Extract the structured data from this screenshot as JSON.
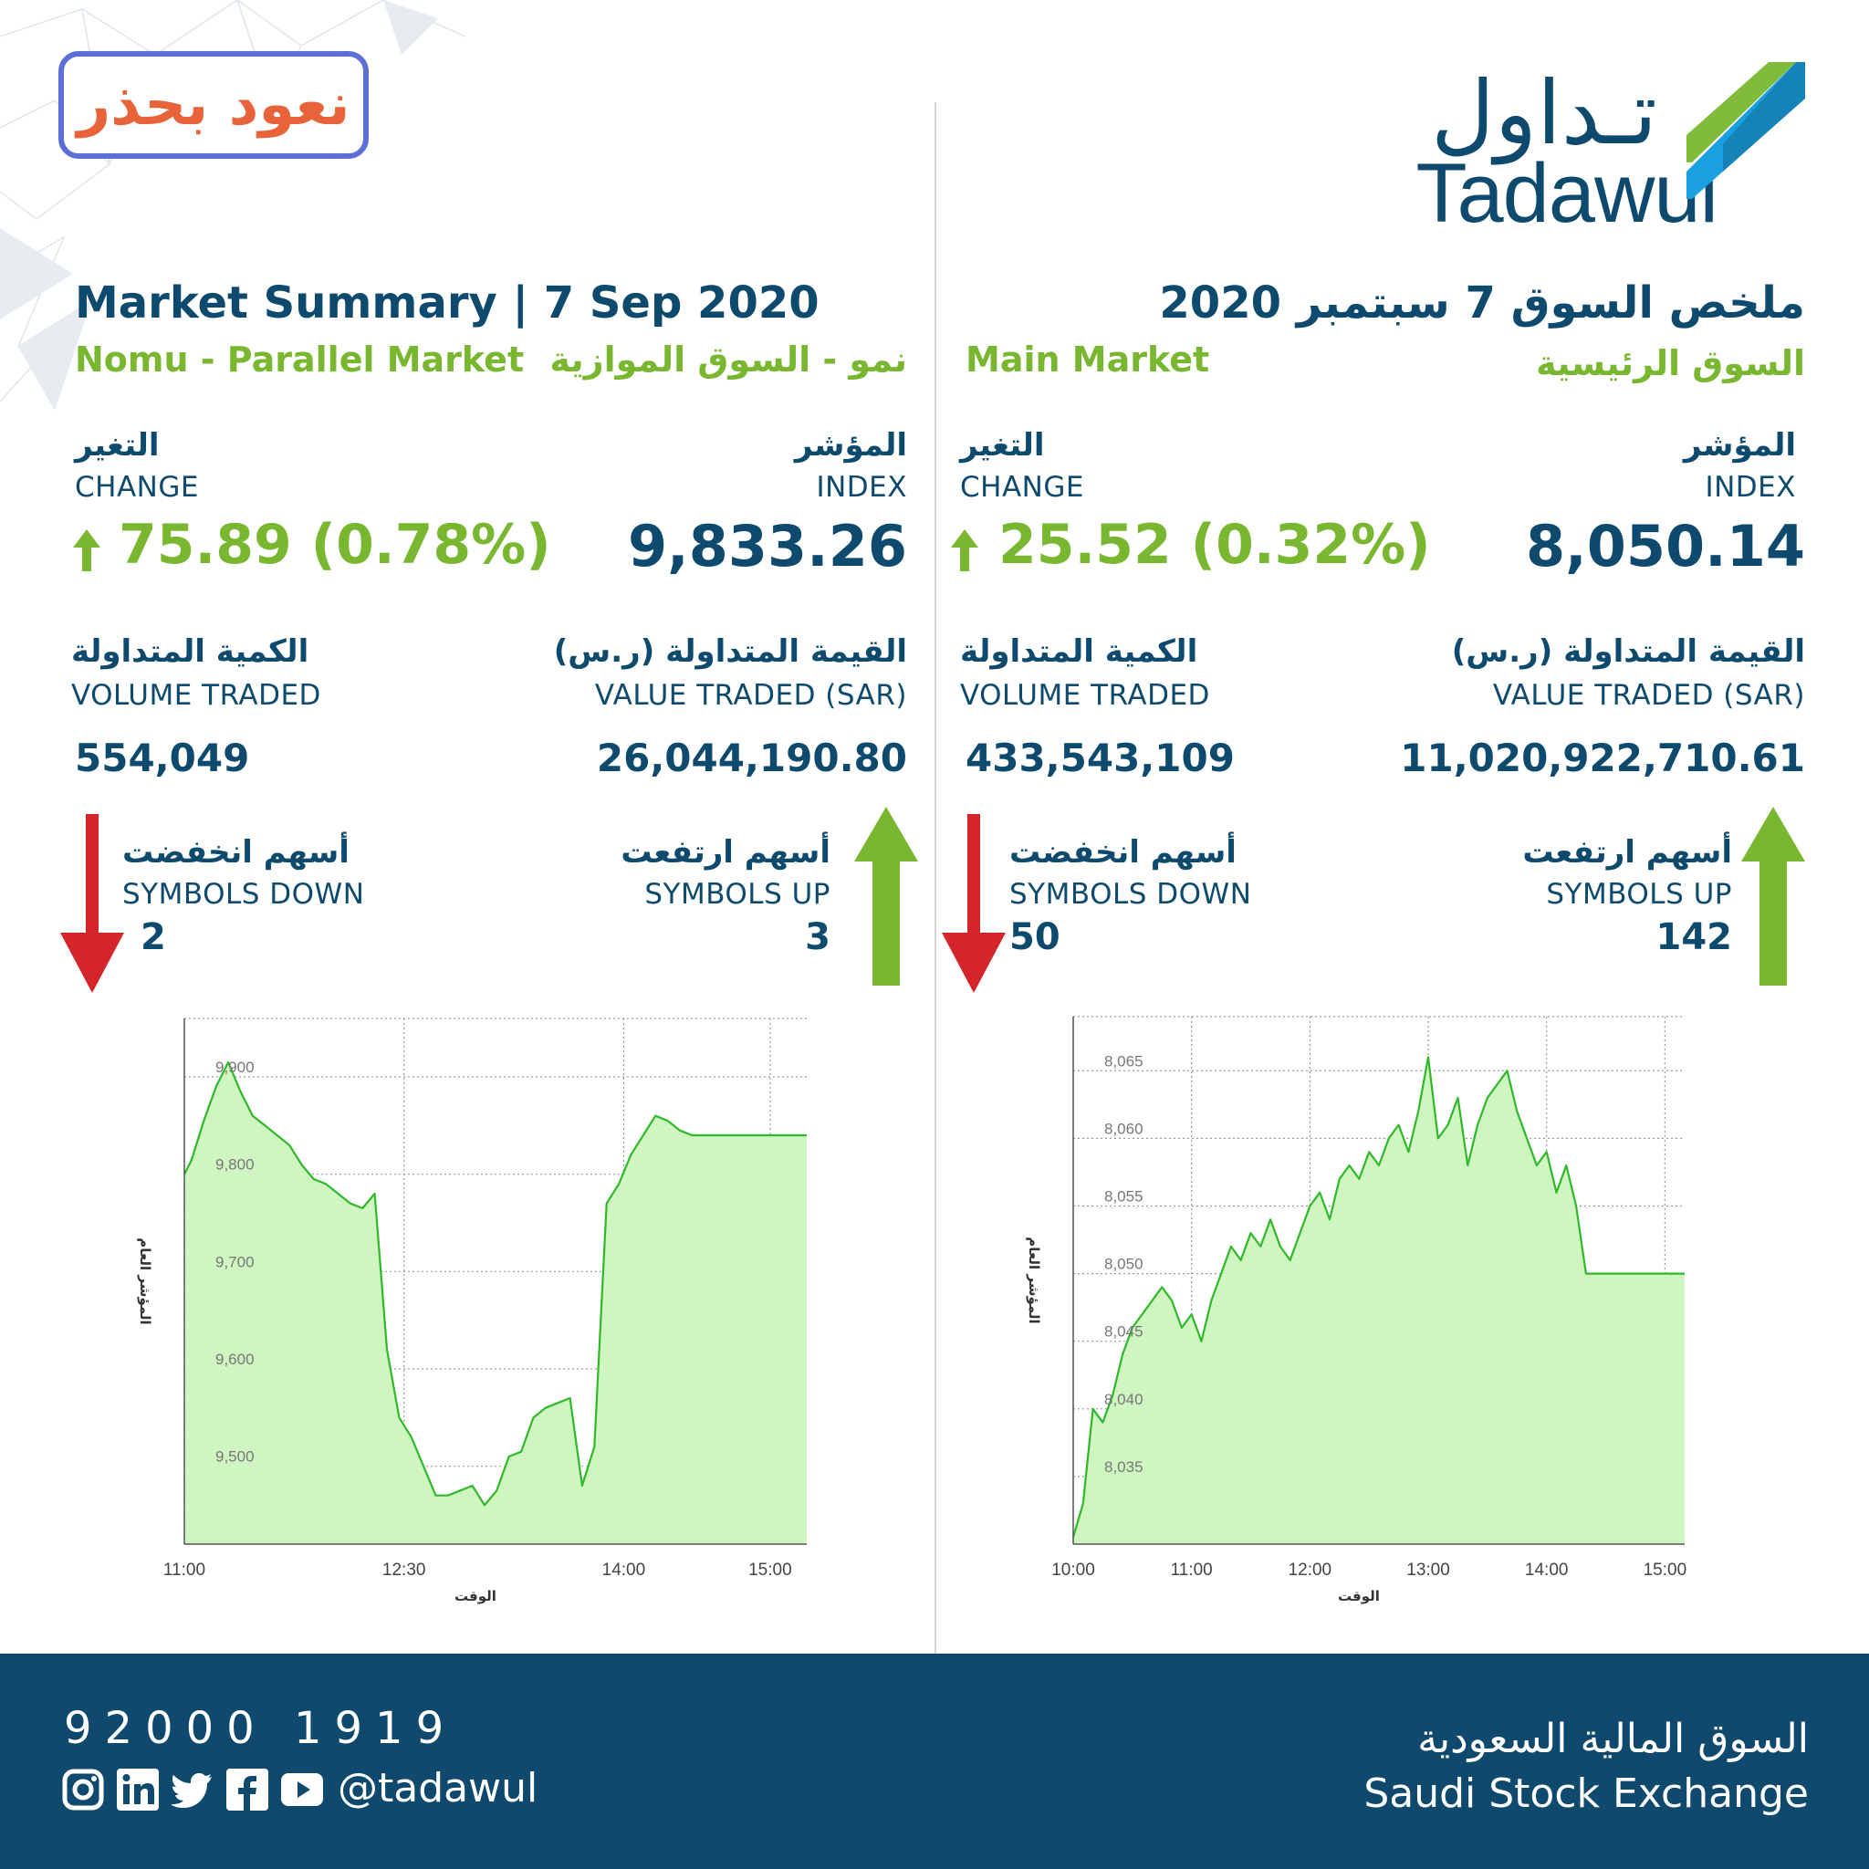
{
  "badge": {
    "text": "نعود بحذر"
  },
  "logo": {
    "arabic": "تـداول",
    "english": "Tadawul"
  },
  "headings": {
    "left_title": "Market Summary | 7 Sep 2020",
    "right_title": "ملخص السوق 7 سبتمبر 2020"
  },
  "nomu": {
    "name_en": "Nomu - Parallel Market",
    "name_ar": "نمو - السوق الموازية",
    "change_ar": "التغير",
    "change_en": "CHANGE",
    "change_value": "75.89 (0.78%)",
    "index_ar": "المؤشر",
    "index_en": "INDEX",
    "index_value": "9,833.26",
    "volume_ar": "الكمية المتداولة",
    "volume_en": "VOLUME TRADED",
    "volume_value": "554,049",
    "value_ar": "القيمة المتداولة (ر.س)",
    "value_en": "VALUE TRADED (SAR)",
    "value_value": "26,044,190.80",
    "down_ar": "أسهم انخفضت",
    "down_en": "SYMBOLS DOWN",
    "down_value": "2",
    "up_ar": "أسهم ارتفعت",
    "up_en": "SYMBOLS UP",
    "up_value": "3"
  },
  "main": {
    "name_en": "Main Market",
    "name_ar": "السوق الرئيسية",
    "change_ar": "التغير",
    "change_en": "CHANGE",
    "change_value": "25.52 (0.32%)",
    "index_ar": "المؤشر",
    "index_en": "INDEX",
    "index_value": "8,050.14",
    "volume_ar": "الكمية المتداولة",
    "volume_en": "VOLUME TRADED",
    "volume_value": "433,543,109",
    "value_ar": "القيمة المتداولة (ر.س)",
    "value_en": "VALUE TRADED (SAR)",
    "value_value": "11,020,922,710.61",
    "down_ar": "أسهم انخفضت",
    "down_en": "SYMBOLS DOWN",
    "down_value": "50",
    "up_ar": "أسهم ارتفعت",
    "up_en": "SYMBOLS UP",
    "up_value": "142"
  },
  "colors": {
    "navy": "#0e4a6e",
    "green": "#7ab730",
    "red": "#d3252a",
    "line": "#2fb82a",
    "fill": "#cff5c0"
  },
  "footer": {
    "phone": "92000 1919",
    "handle": "@tadawul",
    "exchange_ar": "السوق المالية السعودية",
    "exchange_en": "Saudi Stock Exchange",
    "social_icons": [
      "instagram-icon",
      "linkedin-icon",
      "twitter-icon",
      "facebook-icon",
      "youtube-icon"
    ]
  },
  "chart_data": [
    {
      "type": "area",
      "xlabel": "الوقت",
      "ylabel": "المؤشر العام",
      "x_ticks": [
        "11:00",
        "12:30",
        "14:00",
        "15:00"
      ],
      "y_ticks": [
        "9,500",
        "9,600",
        "9,700",
        "9,800",
        "9,900"
      ],
      "xlim": [
        "11:00",
        "15:15"
      ],
      "ylim": [
        9420,
        9960
      ],
      "grid": true,
      "series": [
        {
          "x": [
            "11:00",
            "11:03",
            "11:08",
            "11:13",
            "11:18",
            "11:23",
            "11:28",
            "11:33",
            "11:38",
            "11:43",
            "11:48",
            "11:53",
            "11:58",
            "12:03",
            "12:08",
            "12:13",
            "12:18",
            "12:23",
            "12:28",
            "12:33",
            "12:38",
            "12:43",
            "12:48",
            "12:53",
            "12:58",
            "13:03",
            "13:08",
            "13:13",
            "13:18",
            "13:23",
            "13:28",
            "13:33",
            "13:38",
            "13:43",
            "13:48",
            "13:53",
            "13:58",
            "14:03",
            "14:08",
            "14:13",
            "14:18",
            "14:23",
            "14:28",
            "14:33",
            "14:38",
            "14:43",
            "14:48",
            "14:53",
            "14:58",
            "15:03",
            "15:08",
            "15:13",
            "15:15"
          ],
          "y": [
            9800,
            9815,
            9855,
            9890,
            9915,
            9885,
            9860,
            9850,
            9840,
            9830,
            9810,
            9795,
            9790,
            9780,
            9770,
            9765,
            9780,
            9620,
            9550,
            9530,
            9500,
            9470,
            9470,
            9475,
            9480,
            9460,
            9475,
            9510,
            9515,
            9550,
            9560,
            9565,
            9570,
            9480,
            9520,
            9770,
            9790,
            9820,
            9840,
            9860,
            9855,
            9845,
            9840,
            9840,
            9840,
            9840,
            9840,
            9840,
            9840,
            9840,
            9840,
            9840,
            9840
          ]
        }
      ]
    },
    {
      "type": "area",
      "xlabel": "الوقت",
      "ylabel": "المؤشر العام",
      "x_ticks": [
        "10:00",
        "11:00",
        "12:00",
        "13:00",
        "14:00",
        "15:00"
      ],
      "y_ticks": [
        "8,035",
        "8,040",
        "8,045",
        "8,050",
        "8,055",
        "8,060",
        "8,065"
      ],
      "xlim": [
        "10:00",
        "15:10"
      ],
      "ylim": [
        8030,
        8069
      ],
      "grid": true,
      "series": [
        {
          "x": [
            "10:00",
            "10:05",
            "10:10",
            "10:15",
            "10:20",
            "10:25",
            "10:30",
            "10:35",
            "10:40",
            "10:45",
            "10:50",
            "10:55",
            "11:00",
            "11:05",
            "11:10",
            "11:15",
            "11:20",
            "11:25",
            "11:30",
            "11:35",
            "11:40",
            "11:45",
            "11:50",
            "11:55",
            "12:00",
            "12:05",
            "12:10",
            "12:15",
            "12:20",
            "12:25",
            "12:30",
            "12:35",
            "12:40",
            "12:45",
            "12:50",
            "12:55",
            "13:00",
            "13:05",
            "13:10",
            "13:15",
            "13:20",
            "13:25",
            "13:30",
            "13:35",
            "13:40",
            "13:45",
            "13:50",
            "13:55",
            "14:00",
            "14:05",
            "14:10",
            "14:15",
            "14:20",
            "14:25",
            "14:30",
            "14:35",
            "14:40",
            "14:45",
            "14:50",
            "14:55",
            "15:00",
            "15:05",
            "15:10"
          ],
          "y": [
            8030.5,
            8033,
            8040,
            8039,
            8041,
            8044,
            8046,
            8047,
            8048,
            8049,
            8048,
            8046,
            8047,
            8045,
            8048,
            8050,
            8052,
            8051,
            8053,
            8052,
            8054,
            8052,
            8051,
            8053,
            8055,
            8056,
            8054,
            8057,
            8058,
            8057,
            8059,
            8058,
            8060,
            8061,
            8059,
            8062,
            8066,
            8060,
            8061,
            8063,
            8058,
            8061,
            8063,
            8064,
            8065,
            8062,
            8060,
            8058,
            8059,
            8056,
            8058,
            8055,
            8050,
            8050,
            8050,
            8050,
            8050,
            8050,
            8050,
            8050,
            8050,
            8050,
            8050
          ]
        }
      ]
    }
  ]
}
